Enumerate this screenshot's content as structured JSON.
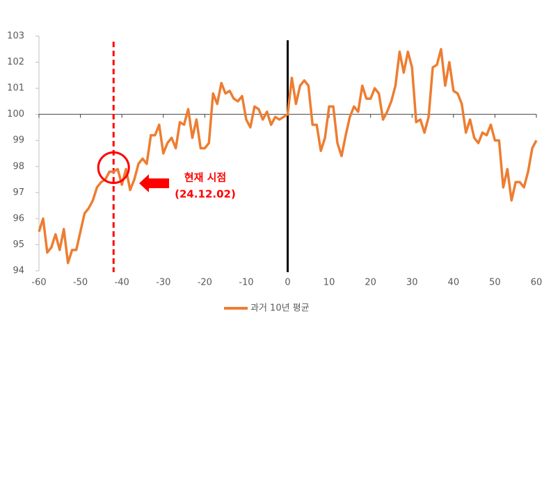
{
  "chart_data": {
    "type": "line",
    "x": [
      -60,
      -59,
      -58,
      -57,
      -56,
      -55,
      -54,
      -53,
      -52,
      -51,
      -50,
      -49,
      -48,
      -47,
      -46,
      -45,
      -44,
      -43,
      -42,
      -41,
      -40,
      -39,
      -38,
      -37,
      -36,
      -35,
      -34,
      -33,
      -32,
      -31,
      -30,
      -29,
      -28,
      -27,
      -26,
      -25,
      -24,
      -23,
      -22,
      -21,
      -20,
      -19,
      -18,
      -17,
      -16,
      -15,
      -14,
      -13,
      -12,
      -11,
      -10,
      -9,
      -8,
      -7,
      -6,
      -5,
      -4,
      -3,
      -2,
      -1,
      0,
      1,
      2,
      3,
      4,
      5,
      6,
      7,
      8,
      9,
      10,
      11,
      12,
      13,
      14,
      15,
      16,
      17,
      18,
      19,
      20,
      21,
      22,
      23,
      24,
      25,
      26,
      27,
      28,
      29,
      30,
      31,
      32,
      33,
      34,
      35,
      36,
      37,
      38,
      39,
      40,
      41,
      42,
      43,
      44,
      45,
      46,
      47,
      48,
      49,
      50,
      51,
      52,
      53,
      54,
      55,
      56,
      57,
      58,
      59,
      60
    ],
    "series": [
      {
        "name": "과거 10년 평균",
        "color": "#ed7d31",
        "values": [
          95.5,
          96.0,
          94.7,
          94.9,
          95.4,
          94.8,
          95.6,
          94.3,
          94.8,
          94.8,
          95.5,
          96.2,
          96.4,
          96.7,
          97.2,
          97.4,
          97.5,
          97.8,
          97.8,
          97.9,
          97.3,
          97.9,
          97.1,
          97.5,
          98.1,
          98.3,
          98.1,
          99.2,
          99.2,
          99.6,
          98.5,
          98.9,
          99.1,
          98.7,
          99.7,
          99.6,
          100.2,
          99.1,
          99.8,
          98.7,
          98.7,
          98.9,
          100.8,
          100.4,
          101.2,
          100.8,
          100.9,
          100.6,
          100.5,
          100.7,
          99.8,
          99.5,
          100.3,
          100.2,
          99.8,
          100.1,
          99.6,
          99.9,
          99.8,
          99.9,
          100.0,
          101.4,
          100.4,
          101.1,
          101.3,
          101.1,
          99.6,
          99.6,
          98.6,
          99.1,
          100.3,
          100.3,
          98.9,
          98.4,
          99.2,
          99.9,
          100.3,
          100.1,
          101.1,
          100.6,
          100.6,
          101.0,
          100.8,
          99.8,
          100.1,
          100.5,
          101.1,
          102.4,
          101.6,
          102.4,
          101.8,
          99.7,
          99.8,
          99.3,
          99.9,
          101.8,
          101.9,
          102.5,
          101.1,
          102.0,
          100.9,
          100.8,
          100.4,
          99.3,
          99.8,
          99.1,
          98.9,
          99.3,
          99.2,
          99.6,
          99.0,
          99.0,
          97.2,
          97.9,
          96.7,
          97.4,
          97.4,
          97.2,
          97.8,
          98.7,
          99.0
        ]
      }
    ],
    "xlim": [
      -60,
      60
    ],
    "xticks": [
      -60,
      -50,
      -40,
      -30,
      -20,
      -10,
      0,
      10,
      20,
      30,
      40,
      50,
      60
    ],
    "ylim": [
      94,
      103
    ],
    "yticks": [
      94,
      95,
      96,
      97,
      98,
      99,
      100,
      101,
      102,
      103
    ],
    "x_axis_at": 100,
    "vlines": [
      {
        "x": 0,
        "color": "#000000",
        "style": "solid"
      },
      {
        "x": -42,
        "color": "#ff0000",
        "style": "dashed"
      }
    ],
    "annotation": {
      "lines": [
        "현재 시점",
        "(24.12.02)"
      ],
      "x": -42,
      "y": 97.9,
      "color": "#ff0000"
    },
    "legend": "bottom"
  }
}
